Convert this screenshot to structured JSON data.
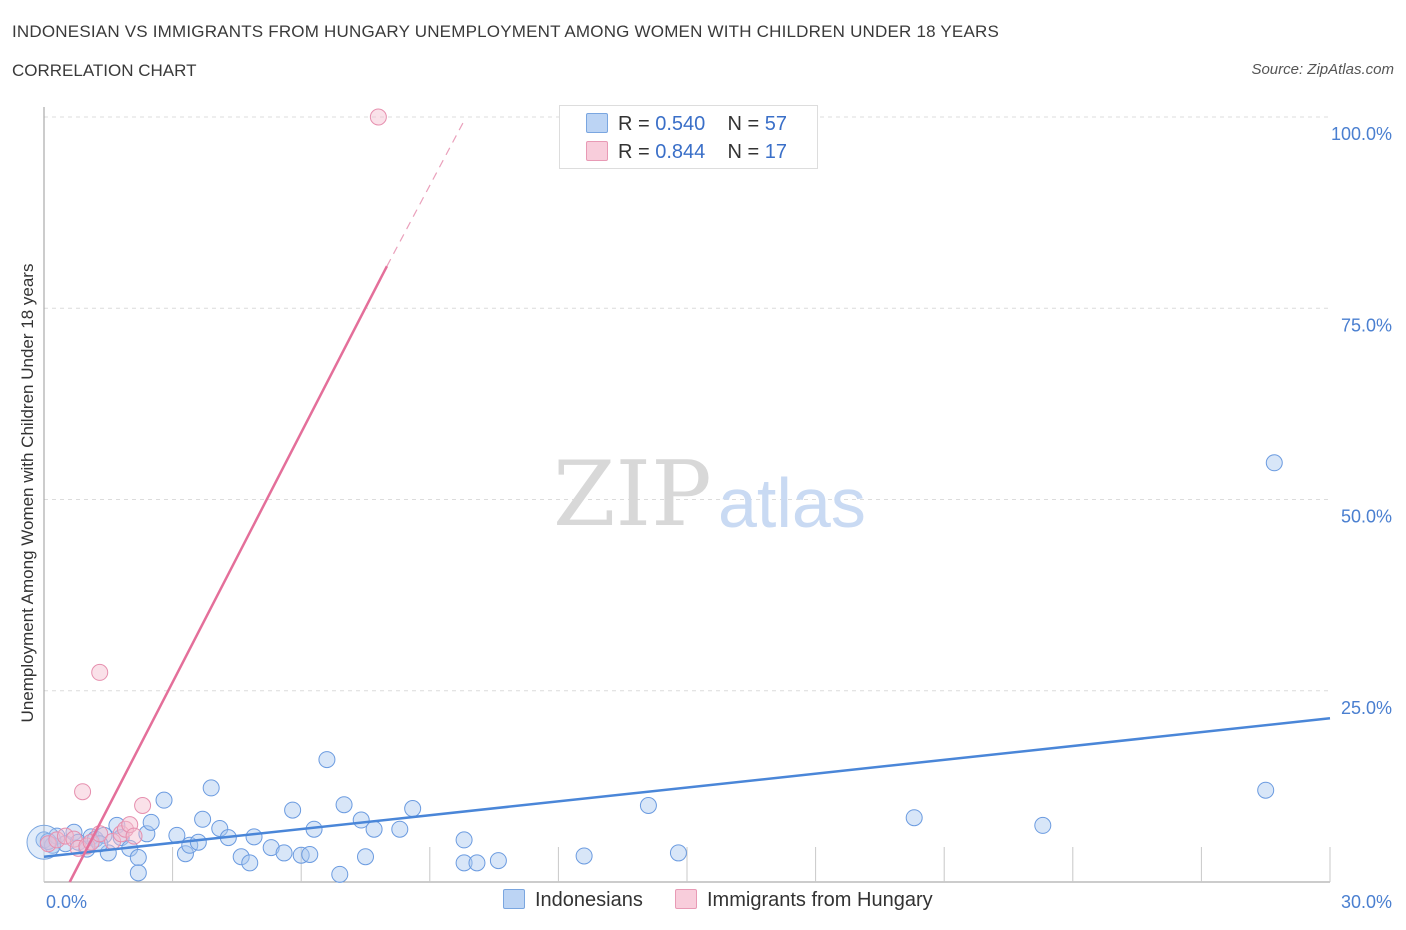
{
  "header": {
    "title": "INDONESIAN VS IMMIGRANTS FROM HUNGARY UNEMPLOYMENT AMONG WOMEN WITH CHILDREN UNDER 18 YEARS",
    "subtitle": "CORRELATION CHART",
    "source": "Source: ZipAtlas.com"
  },
  "watermark": {
    "zip": "ZIP",
    "atlas": "atlas"
  },
  "legend": {
    "rows": [
      {
        "r_label": "R =",
        "r_value": "0.540",
        "n_label": "N =",
        "n_value": "57",
        "color": "#a9c8f0"
      },
      {
        "r_label": "R =",
        "r_value": "0.844",
        "n_label": "N =",
        "n_value": "17",
        "color": "#f5bccf"
      }
    ]
  },
  "bottom_legend": [
    {
      "label": "Indonesians",
      "color": "#a9c8f0"
    },
    {
      "label": "Immigrants from Hungary",
      "color": "#f5bccf"
    }
  ],
  "chart_data": {
    "type": "scatter",
    "title": "INDONESIAN VS IMMIGRANTS FROM HUNGARY UNEMPLOYMENT AMONG WOMEN WITH CHILDREN UNDER 18 YEARS",
    "xlabel": "",
    "ylabel": "Unemployment Among Women with Children Under 18 years",
    "xlim": [
      0,
      30
    ],
    "ylim": [
      0,
      100
    ],
    "x_ticks": [
      {
        "value": 0,
        "label": "0.0%"
      },
      {
        "value": 30,
        "label": "30.0%"
      }
    ],
    "y_ticks": [
      {
        "value": 25,
        "label": "25.0%"
      },
      {
        "value": 50,
        "label": "50.0%"
      },
      {
        "value": 75,
        "label": "75.0%"
      },
      {
        "value": 100,
        "label": "100.0%"
      }
    ],
    "grid": true,
    "colors": {
      "indonesians": "#4a86d8",
      "hungary": "#e46f9a",
      "axis": "#4a7fd0"
    },
    "series": [
      {
        "name": "Indonesians",
        "r": 0.54,
        "n": 57,
        "trend": {
          "x0": 0,
          "y0": 3.3,
          "x1": 30,
          "y1": 21.4
        },
        "points": [
          [
            0.0,
            5.5
          ],
          [
            0.2,
            4.8
          ],
          [
            0.3,
            6.0
          ],
          [
            0.5,
            5.0
          ],
          [
            0.7,
            6.5
          ],
          [
            0.8,
            5.2
          ],
          [
            1.0,
            4.3
          ],
          [
            1.1,
            5.9
          ],
          [
            1.2,
            5.6
          ],
          [
            1.4,
            6.1
          ],
          [
            1.5,
            3.8
          ],
          [
            1.7,
            7.4
          ],
          [
            1.8,
            5.8
          ],
          [
            2.0,
            4.4
          ],
          [
            2.2,
            3.2
          ],
          [
            2.2,
            1.2
          ],
          [
            2.4,
            6.3
          ],
          [
            2.5,
            7.8
          ],
          [
            2.8,
            10.7
          ],
          [
            3.1,
            6.1
          ],
          [
            3.3,
            3.7
          ],
          [
            3.4,
            4.8
          ],
          [
            3.6,
            5.2
          ],
          [
            3.7,
            8.2
          ],
          [
            3.9,
            12.3
          ],
          [
            4.1,
            7.0
          ],
          [
            4.3,
            5.8
          ],
          [
            4.6,
            3.3
          ],
          [
            4.8,
            2.5
          ],
          [
            4.9,
            5.9
          ],
          [
            5.3,
            4.5
          ],
          [
            5.6,
            3.8
          ],
          [
            5.8,
            9.4
          ],
          [
            6.0,
            3.5
          ],
          [
            6.2,
            3.6
          ],
          [
            6.3,
            6.9
          ],
          [
            6.6,
            16.0
          ],
          [
            6.9,
            1.0
          ],
          [
            7.0,
            10.1
          ],
          [
            7.4,
            8.1
          ],
          [
            7.5,
            3.3
          ],
          [
            7.7,
            6.9
          ],
          [
            8.3,
            6.9
          ],
          [
            8.6,
            9.6
          ],
          [
            9.8,
            5.5
          ],
          [
            9.8,
            2.5
          ],
          [
            10.1,
            2.5
          ],
          [
            10.6,
            2.8
          ],
          [
            12.6,
            3.4
          ],
          [
            14.1,
            10.0
          ],
          [
            14.8,
            3.8
          ],
          [
            20.3,
            8.4
          ],
          [
            23.3,
            7.4
          ],
          [
            28.5,
            12.0
          ],
          [
            28.7,
            54.8
          ],
          [
            0.1,
            5.3
          ],
          [
            1.3,
            5.0
          ]
        ]
      },
      {
        "name": "Immigrants from Hungary",
        "r": 0.844,
        "n": 17,
        "trend": {
          "x0": 0.6,
          "y0": 0,
          "x1": 8.0,
          "y1": 80.5,
          "dash_x1": 9.8,
          "dash_y1": 99.5
        },
        "points": [
          [
            0.1,
            5.0
          ],
          [
            0.3,
            5.5
          ],
          [
            0.5,
            6.0
          ],
          [
            0.7,
            5.6
          ],
          [
            0.8,
            4.4
          ],
          [
            1.0,
            4.7
          ],
          [
            1.1,
            5.2
          ],
          [
            1.3,
            6.3
          ],
          [
            1.6,
            5.3
          ],
          [
            1.8,
            6.3
          ],
          [
            1.9,
            6.9
          ],
          [
            2.0,
            7.5
          ],
          [
            2.1,
            6.0
          ],
          [
            2.3,
            10.0
          ],
          [
            1.3,
            27.4
          ],
          [
            0.9,
            11.8
          ],
          [
            7.8,
            100.0
          ]
        ]
      }
    ]
  }
}
